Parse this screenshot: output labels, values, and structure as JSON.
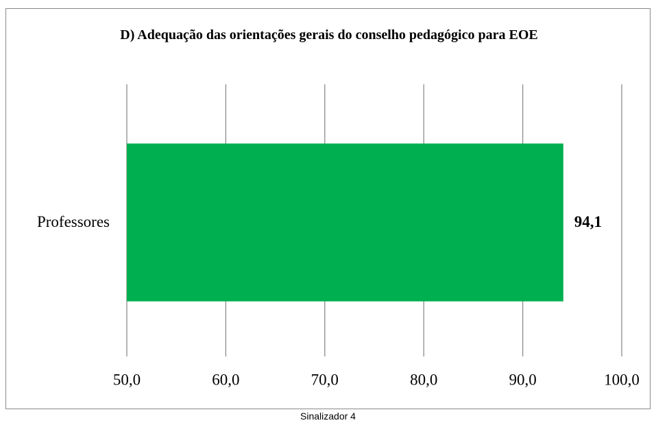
{
  "chart_data": {
    "type": "hbar",
    "title": "D) Adequação das orientações gerais do conselho pedagógico para EOE",
    "categories": [
      "Professores"
    ],
    "values": [
      94.1
    ],
    "value_labels": [
      "94,1"
    ],
    "color": "#00b050",
    "xlim": [
      50,
      100
    ],
    "xticks": [
      {
        "value": 50,
        "label": "50,0"
      },
      {
        "value": 60,
        "label": "60,0"
      },
      {
        "value": 70,
        "label": "70,0"
      },
      {
        "value": 80,
        "label": "80,0"
      },
      {
        "value": 90,
        "label": "90,0"
      },
      {
        "value": 100,
        "label": "100,0"
      }
    ],
    "grid": true
  },
  "caption": "Sinalizador 4"
}
